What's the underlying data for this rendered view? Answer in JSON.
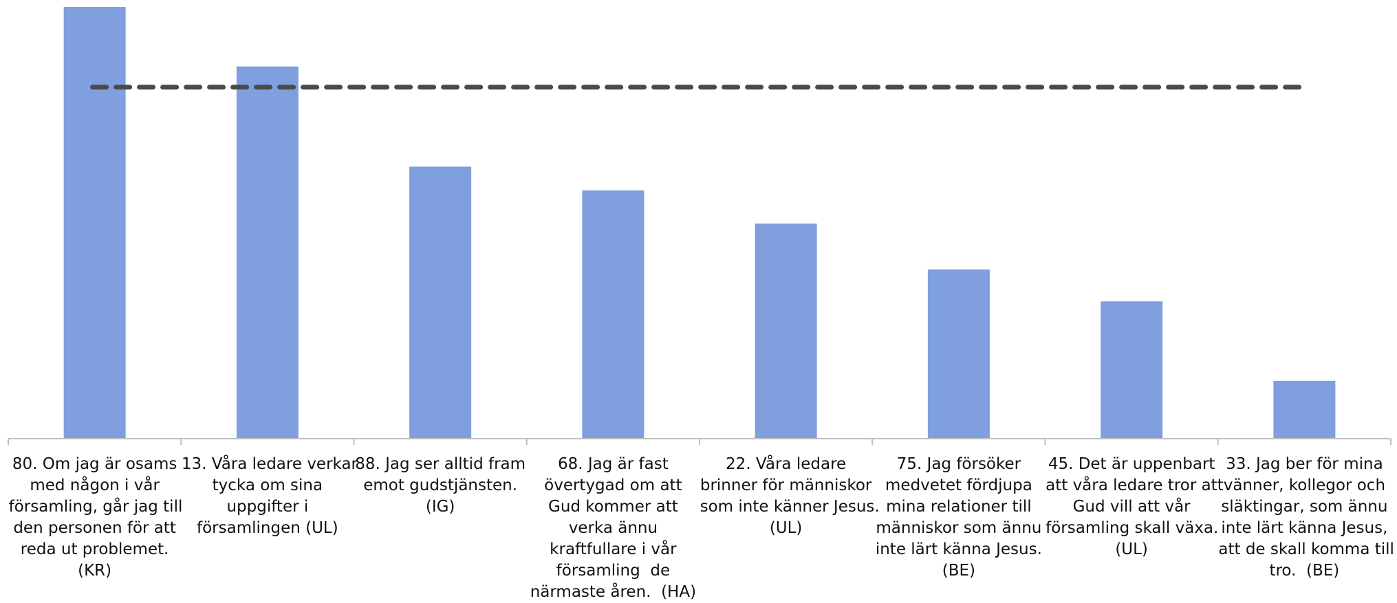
{
  "chart_data": {
    "type": "bar",
    "title": "",
    "xlabel": "",
    "ylabel": "",
    "categories": [
      [
        "80. Om jag är osams",
        "med någon i vår",
        "församling, går jag till",
        "den personen för att",
        "reda ut problemet.",
        "(KR)"
      ],
      [
        "13. Våra ledare verkar",
        "tycka om sina",
        "uppgifter i",
        "församlingen (UL)"
      ],
      [
        "88. Jag ser alltid fram",
        "emot gudstjänsten.",
        "(IG)"
      ],
      [
        "68. Jag är fast",
        "övertygad om att",
        "Gud kommer att",
        "verka ännu",
        "kraftfullare i vår",
        "församling  de",
        "närmaste åren.  (HA)"
      ],
      [
        "22. Våra ledare",
        "brinner för människor",
        "som inte känner Jesus.",
        "(UL)"
      ],
      [
        "75. Jag försöker",
        "medvetet fördjupa",
        "mina relationer till",
        "människor som ännu",
        "inte lärt känna Jesus.",
        "(BE)"
      ],
      [
        "45. Det är uppenbart",
        "att våra ledare tror att",
        "Gud vill att vår",
        "församling skall växa.",
        "(UL)"
      ],
      [
        "33. Jag ber för mina",
        "vänner, kollegor och",
        "släktingar, som ännu",
        "inte lärt känna Jesus,",
        "att de skall komma till",
        "tro.  (BE)"
      ]
    ],
    "values": [
      100,
      86.2,
      63,
      57.5,
      49.8,
      39.2,
      31.8,
      13.4
    ],
    "reference_line": 81.4,
    "ylim": [
      0,
      100
    ],
    "grid": false,
    "legend": "none",
    "colors": {
      "bar": "#7f9fdf",
      "reference_line": "#4a4a4a",
      "axis": "#bfbfbf"
    }
  }
}
